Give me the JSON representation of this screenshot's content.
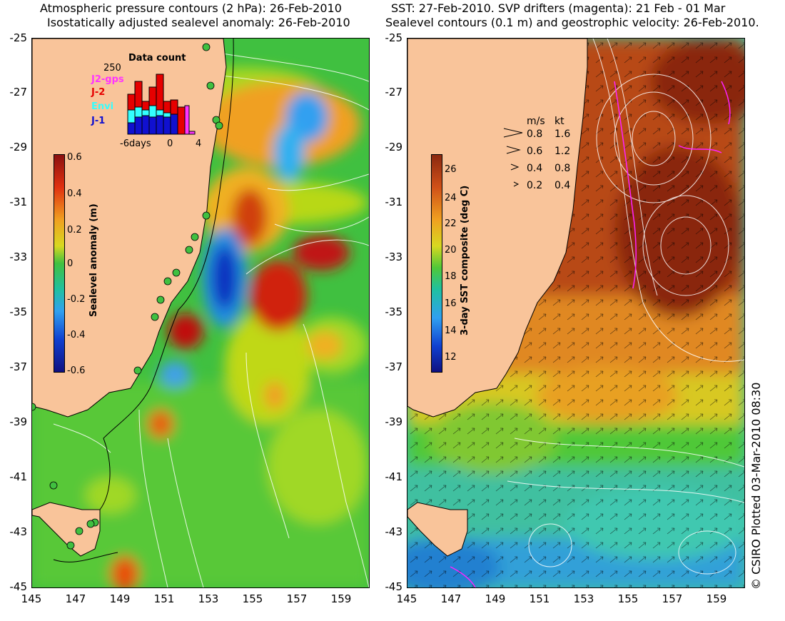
{
  "left_panel": {
    "title_line1": "Atmospheric pressure contours (2 hPa): 26-Feb-2010",
    "title_line2": "Isostatically adjusted sealevel anomaly: 26-Feb-2010",
    "y_ticks": [
      "-25",
      "-27",
      "-29",
      "-31",
      "-33",
      "-35",
      "-37",
      "-39",
      "-41",
      "-43",
      "-45"
    ],
    "x_ticks": [
      "145",
      "147",
      "149",
      "151",
      "153",
      "155",
      "157",
      "159"
    ],
    "colorbar": {
      "label": "Sealevel anomaly (m)",
      "ticks": [
        "0.6",
        "0.4",
        "0.2",
        "0",
        "-0.2",
        "-0.4",
        "-0.6"
      ]
    },
    "histogram": {
      "title": "Data count",
      "max_label": "250",
      "legend": [
        "J2-gps",
        "J-2",
        "Envi",
        "J-1"
      ],
      "legend_colors": [
        "#ff33ff",
        "#e60000",
        "#33ffff",
        "#1010d0"
      ],
      "x_ticks": [
        "-6days",
        "0",
        "4"
      ]
    }
  },
  "right_panel": {
    "title_line1": "SST: 27-Feb-2010. SVP drifters (magenta): 21 Feb - 01 Mar",
    "title_line2": "Sealevel contours (0.1 m) and geostrophic velocity: 26-Feb-2010.",
    "y_ticks": [
      "-25",
      "-27",
      "-29",
      "-31",
      "-33",
      "-35",
      "-37",
      "-39",
      "-41",
      "-43",
      "-45"
    ],
    "x_ticks": [
      "145",
      "147",
      "149",
      "151",
      "153",
      "155",
      "157",
      "159"
    ],
    "colorbar": {
      "label": "3-day SST composite (deg C)",
      "ticks": [
        "26",
        "24",
        "22",
        "20",
        "18",
        "16",
        "14",
        "12"
      ]
    },
    "velocity_legend": {
      "header_ms": "m/s",
      "header_kt": "kt",
      "rows": [
        {
          "ms": "0.8",
          "kt": "1.6"
        },
        {
          "ms": "0.6",
          "kt": "1.2"
        },
        {
          "ms": "0.4",
          "kt": "0.8"
        },
        {
          "ms": "0.2",
          "kt": "0.4"
        }
      ]
    }
  },
  "copyright": "© CSIRO Plotted 03-Mar-2010 08:30",
  "colors": {
    "land": "#f9c49a",
    "sst_warm": "#a83a10",
    "sst_mid": "#e8a018",
    "sst_cool": "#58c838",
    "sla_green": "#40c040"
  }
}
